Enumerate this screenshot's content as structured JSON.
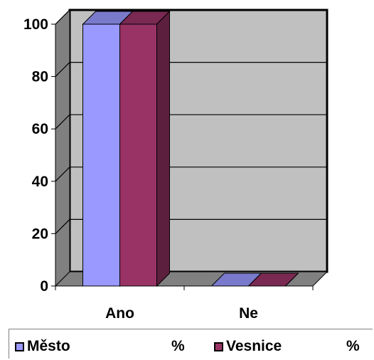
{
  "chart_data": {
    "type": "bar",
    "categories": [
      "Ano",
      "Ne"
    ],
    "series": [
      {
        "name": "Město",
        "unit": "%",
        "values": [
          100,
          0
        ],
        "color": "#9999ff"
      },
      {
        "name": "Vesnice",
        "unit": "%",
        "values": [
          100,
          0
        ],
        "color": "#993366"
      }
    ],
    "ylim": [
      0,
      100
    ],
    "yticks": [
      "0",
      "20",
      "40",
      "60",
      "80",
      "100"
    ],
    "grid": true,
    "legend_position": "bottom",
    "style": "3d",
    "colors": {
      "wall": "#c0c0c0",
      "floor": "#808080",
      "side_wall": "#808080"
    }
  }
}
